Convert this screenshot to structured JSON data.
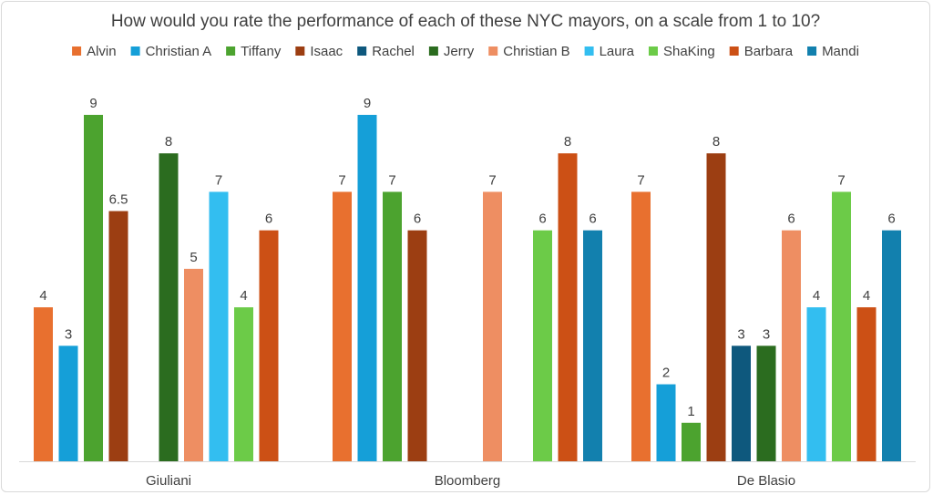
{
  "chart_data": {
    "type": "bar",
    "title": "How would you rate the performance of each of these NYC mayors, on a scale from 1 to 10?",
    "xlabel": "",
    "ylabel": "",
    "ylim": [
      0,
      9
    ],
    "grid": false,
    "legend_position": "top",
    "categories": [
      "Giuliani",
      "Bloomberg",
      "De Blasio"
    ],
    "series": [
      {
        "name": "Alvin",
        "color": "#E8702F",
        "values": [
          4,
          7,
          7
        ]
      },
      {
        "name": "Christian A",
        "color": "#159FD8",
        "values": [
          3,
          9,
          2
        ]
      },
      {
        "name": "Tiffany",
        "color": "#4CA32F",
        "values": [
          9,
          7,
          1
        ]
      },
      {
        "name": "Isaac",
        "color": "#9C3E12",
        "values": [
          6.5,
          6,
          8
        ]
      },
      {
        "name": "Rachel",
        "color": "#0E587D",
        "values": [
          null,
          null,
          3
        ]
      },
      {
        "name": "Jerry",
        "color": "#2B6C1F",
        "values": [
          8,
          null,
          3
        ]
      },
      {
        "name": "Christian B",
        "color": "#EE8E62",
        "values": [
          5,
          7,
          6
        ]
      },
      {
        "name": "Laura",
        "color": "#33BEF0",
        "values": [
          7,
          null,
          4
        ]
      },
      {
        "name": "ShaKing",
        "color": "#6CCB48",
        "values": [
          4,
          6,
          7
        ]
      },
      {
        "name": "Barbara",
        "color": "#CC5015",
        "values": [
          6,
          8,
          4
        ]
      },
      {
        "name": "Mandi",
        "color": "#1280AE",
        "values": [
          null,
          6,
          6
        ]
      }
    ]
  }
}
